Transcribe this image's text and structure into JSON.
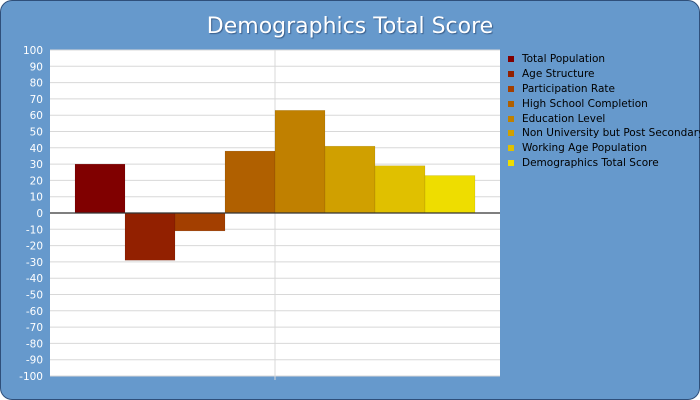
{
  "chart_data": {
    "type": "bar",
    "title": "Demographics Total Score",
    "xlabel": "",
    "ylabel": "",
    "ylim": [
      -100,
      100
    ],
    "yticks": [
      100,
      90,
      80,
      70,
      60,
      50,
      40,
      30,
      20,
      10,
      0,
      -10,
      -20,
      -30,
      -40,
      -50,
      -60,
      -70,
      -80,
      -90,
      -100
    ],
    "grid": true,
    "legend_position": "right",
    "series": [
      {
        "name": "Total Population",
        "value": 30,
        "color": "#800000"
      },
      {
        "name": "Age Structure",
        "value": -29,
        "color": "#922000"
      },
      {
        "name": "Participation Rate",
        "value": -11,
        "color": "#a33f00"
      },
      {
        "name": "High School Completion",
        "value": 38,
        "color": "#b06000"
      },
      {
        "name": "Education Level",
        "value": 63,
        "color": "#c08000"
      },
      {
        "name": "Non University but Post Secondary",
        "value": 41,
        "color": "#d0a000"
      },
      {
        "name": "Working Age Population",
        "value": 29,
        "color": "#e0c000"
      },
      {
        "name": "Demographics Total Score",
        "value": 23,
        "color": "#eedd00"
      }
    ]
  }
}
